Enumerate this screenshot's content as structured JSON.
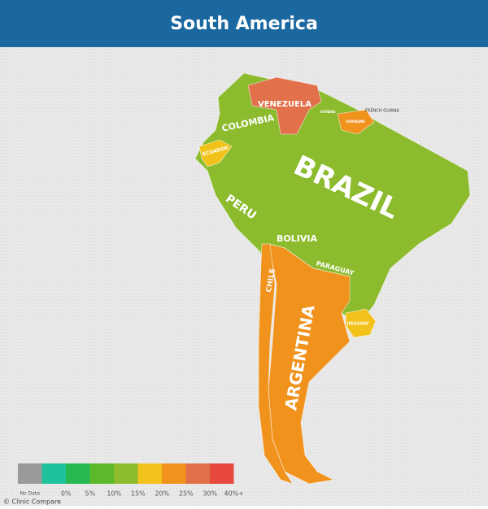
{
  "header": {
    "title": "South America"
  },
  "map": {
    "base_color": "#8cbb2e",
    "countries": [
      {
        "label": "VENEZUELA",
        "color": "#e2704a"
      },
      {
        "label": "COLOMBIA",
        "color": "#8cbb2e"
      },
      {
        "label": "ECUADOR",
        "color": "#f2c21b"
      },
      {
        "label": "GUYANA",
        "color": "#8cbb2e"
      },
      {
        "label": "SURINAME",
        "color": "#f0921c"
      },
      {
        "label": "FRENCH GUIANA",
        "color": "#8cbb2e"
      },
      {
        "label": "BRAZIL",
        "color": "#8cbb2e"
      },
      {
        "label": "PERU",
        "color": "#8cbb2e"
      },
      {
        "label": "BOLIVIA",
        "color": "#8cbb2e"
      },
      {
        "label": "PARAGUAY",
        "color": "#8cbb2e"
      },
      {
        "label": "CHILE",
        "color": "#f0921c"
      },
      {
        "label": "ARGENTINA",
        "color": "#f0921c"
      },
      {
        "label": "URUGUAY",
        "color": "#f2c21b"
      }
    ]
  },
  "legend": {
    "items": [
      {
        "label": "No Data",
        "color": "#9a9a9a"
      },
      {
        "label": "0%",
        "color": "#1fc19b"
      },
      {
        "label": "5%",
        "color": "#27b852"
      },
      {
        "label": "10%",
        "color": "#5cba2a"
      },
      {
        "label": "15%",
        "color": "#8cbb2e"
      },
      {
        "label": "20%",
        "color": "#f2c21b"
      },
      {
        "label": "25%",
        "color": "#f0921c"
      },
      {
        "label": "30%",
        "color": "#e2704a"
      },
      {
        "label": "40%+",
        "color": "#e8493f"
      }
    ]
  },
  "credit": "© Clinic Compare"
}
